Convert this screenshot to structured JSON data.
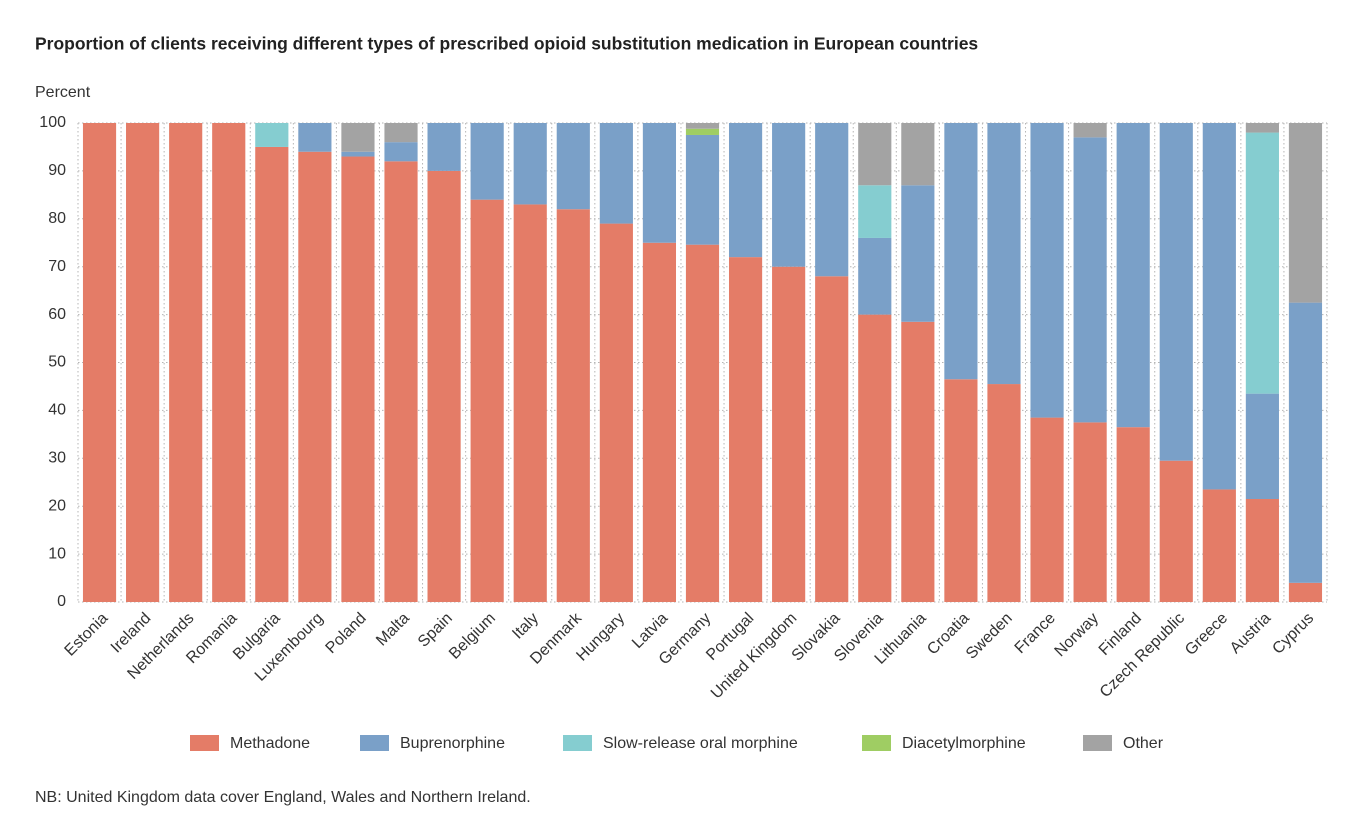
{
  "chart_data": {
    "type": "stacked_bar",
    "title": "Proportion of clients receiving different types of prescribed opioid substitution medication in European countries",
    "y_label": "Percent",
    "note": "NB: United Kingdom data cover England, Wales and Northern Ireland.",
    "categories": [
      "Estonia",
      "Ireland",
      "Netherlands",
      "Romania",
      "Bulgaria",
      "Luxembourg",
      "Poland",
      "Malta",
      "Spain",
      "Belgium",
      "Italy",
      "Denmark",
      "Hungary",
      "Latvia",
      "Germany",
      "Portugal",
      "United Kingdom",
      "Slovakia",
      "Slovenia",
      "Lithuania",
      "Croatia",
      "Sweden",
      "France",
      "Norway",
      "Finland",
      "Czech Republic",
      "Greece",
      "Austria",
      "Cyprus"
    ],
    "series": [
      {
        "name": "Methadone",
        "color": "#e47c67",
        "values": [
          100,
          100,
          100,
          100,
          95,
          94,
          93,
          92,
          90,
          84,
          83,
          82,
          79,
          75,
          74.6,
          72,
          70,
          68,
          60,
          58.5,
          46.5,
          45.5,
          38.5,
          37.5,
          36.5,
          29.5,
          23.5,
          21.5,
          4
        ]
      },
      {
        "name": "Buprenorphine",
        "color": "#7aa0c8",
        "values": [
          0,
          0,
          0,
          0,
          0,
          6,
          1,
          4,
          10,
          16,
          17,
          18,
          21,
          25,
          22.9,
          28,
          30,
          32,
          16,
          28.5,
          53.5,
          54.5,
          61.5,
          59.5,
          63.5,
          70.5,
          76.5,
          22,
          58.5
        ]
      },
      {
        "name": "Slow-release oral morphine",
        "color": "#85cdd0",
        "values": [
          0,
          0,
          0,
          0,
          5,
          0,
          0,
          0,
          0,
          0,
          0,
          0,
          0,
          0,
          0,
          0,
          0,
          0,
          11,
          0,
          0,
          0,
          0,
          0,
          0,
          0,
          0,
          54.5,
          0
        ]
      },
      {
        "name": "Diacetylmorphine",
        "color": "#9fcd63",
        "values": [
          0,
          0,
          0,
          0,
          0,
          0,
          0,
          0,
          0,
          0,
          0,
          0,
          0,
          0,
          1.3,
          0,
          0,
          0,
          0,
          0,
          0,
          0,
          0,
          0,
          0,
          0,
          0,
          0,
          0
        ]
      },
      {
        "name": "Other",
        "color": "#a3a3a3",
        "values": [
          0,
          0,
          0,
          0,
          0,
          0,
          6,
          4,
          0,
          0,
          0,
          0,
          0,
          0,
          1.2,
          0,
          0,
          0,
          13,
          13,
          0,
          0,
          0,
          3,
          0,
          0,
          0,
          2,
          37.5
        ]
      }
    ],
    "ylim": [
      0,
      100
    ],
    "yticks": [
      0,
      10,
      20,
      30,
      40,
      50,
      60,
      70,
      80,
      90,
      100
    ],
    "grid": true
  }
}
